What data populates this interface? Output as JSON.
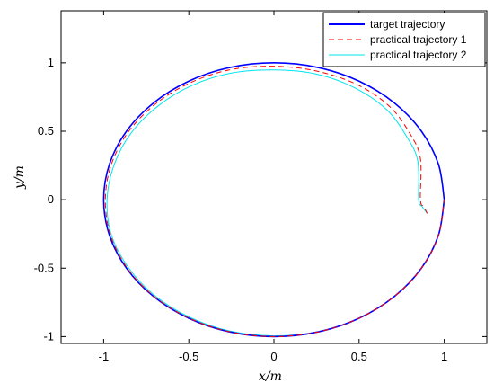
{
  "chart_data": {
    "type": "line",
    "title": "",
    "xlabel": "x/m",
    "ylabel": "y/m",
    "xlim": [
      -1.25,
      1.25
    ],
    "ylim": [
      -1.05,
      1.38
    ],
    "xticks": [
      -1,
      -0.5,
      0,
      0.5,
      1
    ],
    "xtick_labels": [
      "-1",
      "-0.5",
      "0",
      "0.5",
      "1"
    ],
    "yticks": [
      -1,
      -0.5,
      0,
      0.5,
      1
    ],
    "ytick_labels": [
      "-1",
      "-0.5",
      "0",
      "0.5",
      "1"
    ],
    "grid": false,
    "legend_position": "top-right",
    "series": [
      {
        "name": "target trajectory",
        "color": "#0000ff",
        "style": "solid",
        "x": [
          1.0,
          0.966,
          0.866,
          0.707,
          0.5,
          0.259,
          0.0,
          -0.259,
          -0.5,
          -0.707,
          -0.866,
          -0.966,
          -1.0,
          -0.966,
          -0.866,
          -0.707,
          -0.5,
          -0.259,
          0.0,
          0.259,
          0.5,
          0.707,
          0.866,
          0.966,
          1.0
        ],
        "y": [
          0.0,
          0.259,
          0.5,
          0.707,
          0.866,
          0.966,
          1.0,
          0.966,
          0.866,
          0.707,
          0.5,
          0.259,
          0.0,
          -0.259,
          -0.5,
          -0.707,
          -0.866,
          -0.966,
          -1.0,
          -0.966,
          -0.866,
          -0.707,
          -0.5,
          -0.259,
          0.0
        ]
      },
      {
        "name": "practical trajectory 1",
        "color": "#ff0000",
        "style": "dashed",
        "x": [
          0.9,
          0.88,
          0.86,
          0.86,
          0.8,
          0.68,
          0.49,
          0.25,
          0.0,
          -0.255,
          -0.49,
          -0.695,
          -0.855,
          -0.955,
          -0.99,
          -0.96,
          -0.862,
          -0.705,
          -0.499,
          -0.259,
          0.0,
          0.259,
          0.5,
          0.707,
          0.866,
          0.966,
          1.0
        ],
        "y": [
          -0.1,
          -0.05,
          0.0,
          0.3,
          0.48,
          0.68,
          0.84,
          0.94,
          0.975,
          0.95,
          0.855,
          0.7,
          0.495,
          0.257,
          0.0,
          -0.257,
          -0.498,
          -0.705,
          -0.864,
          -0.965,
          -1.0,
          -0.966,
          -0.866,
          -0.707,
          -0.5,
          -0.259,
          0.0
        ]
      },
      {
        "name": "practical trajectory 2",
        "color": "#00e5ee",
        "style": "solid",
        "x": [
          0.9,
          0.87,
          0.85,
          0.845,
          0.78,
          0.66,
          0.47,
          0.24,
          0.0,
          -0.25,
          -0.48,
          -0.68,
          -0.84,
          -0.94,
          -0.98,
          -0.955,
          -0.855,
          -0.7,
          -0.495,
          -0.257,
          0.0,
          0.259,
          0.5,
          0.707,
          0.866,
          0.966,
          1.0
        ],
        "y": [
          -0.1,
          -0.05,
          0.0,
          0.28,
          0.46,
          0.66,
          0.82,
          0.92,
          0.948,
          0.925,
          0.835,
          0.685,
          0.485,
          0.25,
          0.0,
          -0.255,
          -0.495,
          -0.7,
          -0.858,
          -0.96,
          -0.995,
          -0.964,
          -0.865,
          -0.707,
          -0.5,
          -0.259,
          0.0
        ]
      }
    ]
  }
}
